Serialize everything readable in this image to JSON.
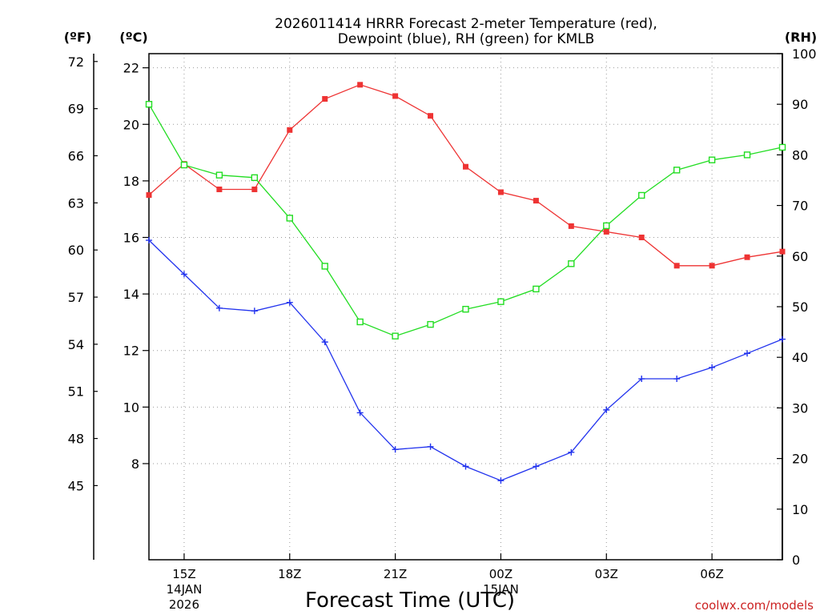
{
  "chart_data": {
    "type": "line",
    "title_line1": "2026011414 HRRR Forecast 2-meter Temperature (red),",
    "title_line2": "Dewpoint (blue), RH (green) for KMLB",
    "left_unit_f": "(ºF)",
    "left_unit_c": "(ºC)",
    "right_unit": "(RH)",
    "xlabel": "Forecast Time (UTC)",
    "credit": "coolwx.com/models",
    "x_hours": [
      14,
      15,
      16,
      17,
      18,
      19,
      20,
      21,
      22,
      23,
      24,
      25,
      26,
      27,
      28,
      29,
      30,
      31,
      32
    ],
    "xlim": [
      14,
      32
    ],
    "x_ticks": [
      {
        "hour": 15,
        "label": "15Z"
      },
      {
        "hour": 18,
        "label": "18Z"
      },
      {
        "hour": 21,
        "label": "21Z"
      },
      {
        "hour": 24,
        "label": "00Z"
      },
      {
        "hour": 27,
        "label": "03Z"
      },
      {
        "hour": 30,
        "label": "06Z"
      }
    ],
    "date_labels": [
      {
        "hour": 15,
        "line1": "14JAN",
        "line2": "2026"
      },
      {
        "hour": 24,
        "line1": "15JAN",
        "line2": ""
      }
    ],
    "ylim_c": [
      4.6,
      22.5
    ],
    "y_ticks_c": [
      8,
      10,
      12,
      14,
      16,
      18,
      20,
      22
    ],
    "y_ticks_f": [
      45,
      48,
      51,
      54,
      57,
      60,
      63,
      66,
      69,
      72
    ],
    "ylim_rh": [
      0,
      100
    ],
    "y_ticks_rh": [
      0,
      10,
      20,
      30,
      40,
      50,
      60,
      70,
      80,
      90,
      100
    ],
    "series": [
      {
        "name": "Temperature",
        "axis": "c",
        "color": "#ee3333",
        "marker": "filled-square",
        "values": [
          17.5,
          18.6,
          17.7,
          17.7,
          19.8,
          20.9,
          21.4,
          21.0,
          20.3,
          18.5,
          17.6,
          17.3,
          16.4,
          16.2,
          16.0,
          15.0,
          15.0,
          15.3,
          15.5
        ]
      },
      {
        "name": "Dewpoint",
        "axis": "c",
        "color": "#2233ee",
        "marker": "plus",
        "values": [
          15.9,
          14.7,
          13.5,
          13.4,
          13.7,
          12.3,
          9.8,
          8.5,
          8.6,
          7.9,
          7.4,
          7.9,
          8.4,
          9.9,
          11.0,
          11.0,
          11.4,
          11.9,
          12.4
        ]
      },
      {
        "name": "RH",
        "axis": "rh",
        "color": "#22dd22",
        "marker": "open-square",
        "values": [
          90,
          78,
          76,
          75.5,
          67.5,
          58,
          47,
          44.2,
          46.5,
          49.5,
          51,
          53.5,
          58.5,
          66,
          72,
          77,
          79,
          80,
          81.5
        ]
      }
    ]
  }
}
